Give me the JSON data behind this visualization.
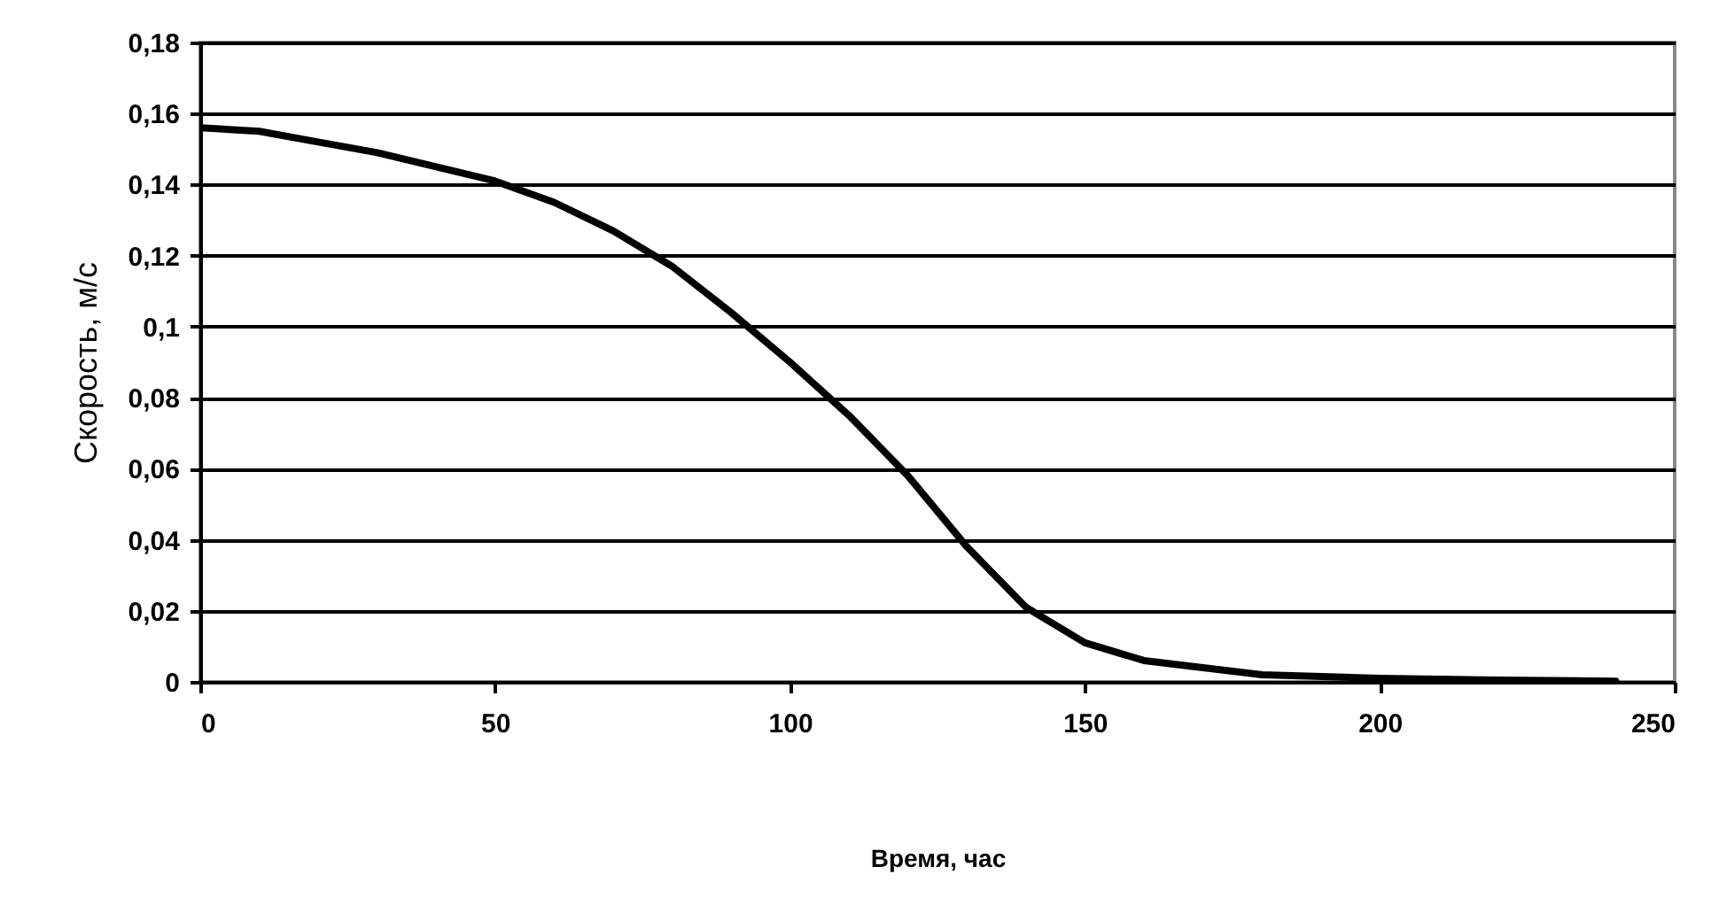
{
  "chart_data": {
    "type": "line",
    "xlabel": "Время, час",
    "ylabel": "Скорость, м/с",
    "x": [
      0,
      10,
      20,
      30,
      40,
      50,
      60,
      70,
      80,
      90,
      100,
      110,
      120,
      130,
      140,
      145,
      150,
      160,
      170,
      180,
      200,
      220,
      240
    ],
    "series": [
      {
        "color": "#000000",
        "values": [
          0.156,
          0.155,
          0.152,
          0.149,
          0.145,
          0.141,
          0.135,
          0.127,
          0.117,
          0.104,
          0.09,
          0.075,
          0.058,
          0.038,
          0.021,
          0.016,
          0.011,
          0.006,
          0.004,
          0.002,
          0.001,
          0.0005,
          0.0002
        ]
      }
    ],
    "xlim": [
      0,
      250
    ],
    "xticks": [
      0,
      50,
      100,
      150,
      200,
      250
    ],
    "ylim": [
      0,
      0.18
    ],
    "yticks": [
      0,
      {
        "value": 0.02,
        "label": "0,02"
      },
      {
        "value": 0.04,
        "label": "0,04"
      },
      {
        "value": 0.06,
        "label": "0,06"
      },
      {
        "value": 0.08,
        "label": "0,08"
      },
      {
        "value": 0.1,
        "label": "0,1"
      },
      {
        "value": 0.12,
        "label": "0,12"
      },
      {
        "value": 0.14,
        "label": "0,14"
      },
      {
        "value": 0.16,
        "label": "0,16"
      },
      {
        "value": 0.18,
        "label": "0,18"
      }
    ],
    "grid": "y",
    "legend": false,
    "marker": "none",
    "line_style": "solid"
  }
}
